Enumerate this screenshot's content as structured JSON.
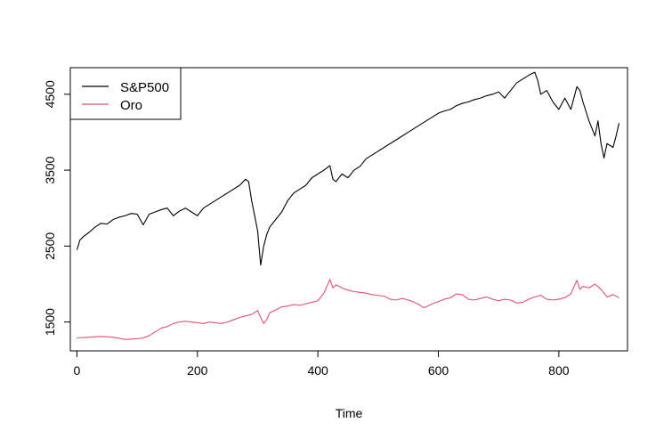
{
  "chart_data": {
    "type": "line",
    "title": "",
    "xlabel": "Time",
    "ylabel": "",
    "xlim": [
      -11,
      914
    ],
    "ylim": [
      1120,
      4850
    ],
    "x_ticks": [
      0,
      200,
      400,
      600,
      800
    ],
    "y_ticks": [
      1500,
      2500,
      3500,
      4500
    ],
    "grid": false,
    "legend": {
      "position": "top-left"
    },
    "series": [
      {
        "name": "S&P500",
        "color": "#000000",
        "points": [
          [
            0,
            2450
          ],
          [
            5,
            2580
          ],
          [
            10,
            2620
          ],
          [
            20,
            2680
          ],
          [
            30,
            2750
          ],
          [
            40,
            2800
          ],
          [
            50,
            2790
          ],
          [
            60,
            2850
          ],
          [
            70,
            2880
          ],
          [
            80,
            2900
          ],
          [
            90,
            2930
          ],
          [
            100,
            2920
          ],
          [
            110,
            2780
          ],
          [
            115,
            2850
          ],
          [
            120,
            2920
          ],
          [
            130,
            2950
          ],
          [
            140,
            2980
          ],
          [
            150,
            3000
          ],
          [
            160,
            2900
          ],
          [
            170,
            2960
          ],
          [
            180,
            3000
          ],
          [
            190,
            2950
          ],
          [
            200,
            2900
          ],
          [
            210,
            3000
          ],
          [
            220,
            3050
          ],
          [
            230,
            3100
          ],
          [
            240,
            3150
          ],
          [
            250,
            3200
          ],
          [
            260,
            3250
          ],
          [
            270,
            3300
          ],
          [
            280,
            3380
          ],
          [
            285,
            3350
          ],
          [
            290,
            3100
          ],
          [
            295,
            2900
          ],
          [
            300,
            2700
          ],
          [
            305,
            2250
          ],
          [
            310,
            2500
          ],
          [
            315,
            2650
          ],
          [
            320,
            2750
          ],
          [
            330,
            2850
          ],
          [
            340,
            2950
          ],
          [
            350,
            3100
          ],
          [
            360,
            3200
          ],
          [
            370,
            3250
          ],
          [
            380,
            3300
          ],
          [
            390,
            3400
          ],
          [
            400,
            3450
          ],
          [
            410,
            3500
          ],
          [
            420,
            3560
          ],
          [
            425,
            3380
          ],
          [
            430,
            3350
          ],
          [
            440,
            3450
          ],
          [
            450,
            3400
          ],
          [
            460,
            3500
          ],
          [
            470,
            3550
          ],
          [
            480,
            3650
          ],
          [
            490,
            3700
          ],
          [
            500,
            3750
          ],
          [
            510,
            3800
          ],
          [
            520,
            3850
          ],
          [
            530,
            3900
          ],
          [
            540,
            3950
          ],
          [
            550,
            4000
          ],
          [
            560,
            4050
          ],
          [
            570,
            4100
          ],
          [
            580,
            4150
          ],
          [
            590,
            4200
          ],
          [
            600,
            4250
          ],
          [
            610,
            4280
          ],
          [
            620,
            4300
          ],
          [
            630,
            4350
          ],
          [
            640,
            4380
          ],
          [
            650,
            4400
          ],
          [
            660,
            4430
          ],
          [
            670,
            4450
          ],
          [
            680,
            4480
          ],
          [
            690,
            4500
          ],
          [
            700,
            4530
          ],
          [
            710,
            4450
          ],
          [
            720,
            4550
          ],
          [
            730,
            4650
          ],
          [
            740,
            4700
          ],
          [
            750,
            4750
          ],
          [
            760,
            4790
          ],
          [
            765,
            4680
          ],
          [
            770,
            4500
          ],
          [
            780,
            4550
          ],
          [
            790,
            4400
          ],
          [
            800,
            4300
          ],
          [
            810,
            4450
          ],
          [
            820,
            4300
          ],
          [
            830,
            4600
          ],
          [
            835,
            4550
          ],
          [
            840,
            4400
          ],
          [
            850,
            4150
          ],
          [
            860,
            3950
          ],
          [
            865,
            4150
          ],
          [
            870,
            3850
          ],
          [
            875,
            3660
          ],
          [
            880,
            3850
          ],
          [
            890,
            3800
          ],
          [
            895,
            3950
          ],
          [
            900,
            4120
          ]
        ]
      },
      {
        "name": "Oro",
        "color": "#DF536B",
        "points": [
          [
            0,
            1290
          ],
          [
            20,
            1300
          ],
          [
            40,
            1310
          ],
          [
            60,
            1300
          ],
          [
            80,
            1270
          ],
          [
            100,
            1280
          ],
          [
            110,
            1290
          ],
          [
            120,
            1320
          ],
          [
            130,
            1370
          ],
          [
            140,
            1420
          ],
          [
            150,
            1440
          ],
          [
            160,
            1480
          ],
          [
            170,
            1500
          ],
          [
            180,
            1510
          ],
          [
            190,
            1500
          ],
          [
            200,
            1490
          ],
          [
            210,
            1480
          ],
          [
            220,
            1500
          ],
          [
            230,
            1490
          ],
          [
            240,
            1480
          ],
          [
            250,
            1500
          ],
          [
            260,
            1530
          ],
          [
            270,
            1560
          ],
          [
            280,
            1580
          ],
          [
            290,
            1600
          ],
          [
            300,
            1650
          ],
          [
            305,
            1560
          ],
          [
            310,
            1480
          ],
          [
            315,
            1530
          ],
          [
            320,
            1620
          ],
          [
            330,
            1660
          ],
          [
            340,
            1700
          ],
          [
            350,
            1710
          ],
          [
            360,
            1730
          ],
          [
            370,
            1720
          ],
          [
            380,
            1740
          ],
          [
            390,
            1760
          ],
          [
            400,
            1780
          ],
          [
            410,
            1880
          ],
          [
            420,
            2060
          ],
          [
            425,
            1950
          ],
          [
            430,
            1990
          ],
          [
            440,
            1950
          ],
          [
            450,
            1920
          ],
          [
            460,
            1900
          ],
          [
            470,
            1890
          ],
          [
            480,
            1880
          ],
          [
            490,
            1860
          ],
          [
            500,
            1850
          ],
          [
            510,
            1840
          ],
          [
            520,
            1800
          ],
          [
            530,
            1790
          ],
          [
            540,
            1810
          ],
          [
            550,
            1790
          ],
          [
            560,
            1760
          ],
          [
            570,
            1720
          ],
          [
            575,
            1690
          ],
          [
            580,
            1700
          ],
          [
            590,
            1740
          ],
          [
            600,
            1770
          ],
          [
            610,
            1800
          ],
          [
            620,
            1820
          ],
          [
            630,
            1870
          ],
          [
            640,
            1860
          ],
          [
            650,
            1800
          ],
          [
            660,
            1790
          ],
          [
            670,
            1810
          ],
          [
            680,
            1830
          ],
          [
            690,
            1800
          ],
          [
            700,
            1780
          ],
          [
            710,
            1800
          ],
          [
            720,
            1790
          ],
          [
            730,
            1750
          ],
          [
            740,
            1760
          ],
          [
            750,
            1800
          ],
          [
            760,
            1830
          ],
          [
            770,
            1850
          ],
          [
            780,
            1800
          ],
          [
            790,
            1790
          ],
          [
            800,
            1800
          ],
          [
            810,
            1820
          ],
          [
            820,
            1870
          ],
          [
            830,
            2050
          ],
          [
            835,
            1930
          ],
          [
            840,
            1970
          ],
          [
            850,
            1950
          ],
          [
            860,
            2000
          ],
          [
            870,
            1930
          ],
          [
            880,
            1830
          ],
          [
            890,
            1860
          ],
          [
            900,
            1820
          ]
        ]
      }
    ]
  }
}
